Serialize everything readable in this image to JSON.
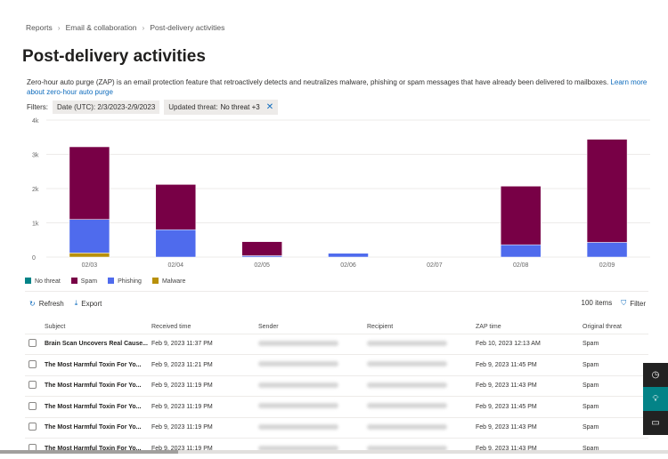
{
  "breadcrumb": [
    "Reports",
    "Email & collaboration",
    "Post-delivery activities"
  ],
  "title": "Post-delivery activities",
  "description": "Zero-hour auto purge (ZAP) is an email protection feature that retroactively detects and neutralizes malware, phishing or spam messages that have already been delivered to mailboxes. ",
  "learn_more": "Learn more about zero-hour auto purge",
  "filters": {
    "label": "Filters:",
    "date": "Date (UTC): 2/3/2023-2/9/2023",
    "threat_label": "Updated threat:",
    "threat_value": "No threat +3"
  },
  "chart_data": {
    "type": "bar",
    "stacked": true,
    "categories": [
      "02/03",
      "02/04",
      "02/05",
      "02/06",
      "02/07",
      "02/08",
      "02/09"
    ],
    "yticks": [
      "0",
      "1k",
      "2k",
      "3k",
      "4k"
    ],
    "ylim": [
      0,
      4000
    ],
    "grid": true,
    "legend": "bottom-left",
    "series": [
      {
        "name": "No threat",
        "color": "#038387",
        "values": [
          0,
          0,
          0,
          0,
          0,
          0,
          0
        ]
      },
      {
        "name": "Spam",
        "color": "#780046",
        "values": [
          2120,
          1320,
          410,
          0,
          0,
          1710,
          3010
        ]
      },
      {
        "name": "Phishing",
        "color": "#4f6bed",
        "values": [
          980,
          800,
          40,
          110,
          0,
          360,
          430
        ]
      },
      {
        "name": "Malware",
        "color": "#b8900a",
        "values": [
          120,
          0,
          0,
          0,
          0,
          0,
          0
        ]
      }
    ]
  },
  "toolbar": {
    "refresh": "Refresh",
    "export": "Export",
    "count": "100 items",
    "filter": "Filter"
  },
  "table": {
    "columns": [
      "Subject",
      "Received time",
      "Sender",
      "Recipient",
      "ZAP time",
      "Original threat"
    ],
    "rows": [
      {
        "subject": "Brain Scan Uncovers Real Cause...",
        "received": "Feb 9, 2023 11:37 PM",
        "zap": "Feb 10, 2023 12:13 AM",
        "threat": "Spam"
      },
      {
        "subject": "The Most Harmful Toxin For Yo...",
        "received": "Feb 9, 2023 11:21 PM",
        "zap": "Feb 9, 2023 11:45 PM",
        "threat": "Spam"
      },
      {
        "subject": "The Most Harmful Toxin For Yo...",
        "received": "Feb 9, 2023 11:19 PM",
        "zap": "Feb 9, 2023 11:43 PM",
        "threat": "Spam"
      },
      {
        "subject": "The Most Harmful Toxin For Yo...",
        "received": "Feb 9, 2023 11:19 PM",
        "zap": "Feb 9, 2023 11:45 PM",
        "threat": "Spam"
      },
      {
        "subject": "The Most Harmful Toxin For Yo...",
        "received": "Feb 9, 2023 11:19 PM",
        "zap": "Feb 9, 2023 11:43 PM",
        "threat": "Spam"
      },
      {
        "subject": "The Most Harmful Toxin For Yo...",
        "received": "Feb 9, 2023 11:19 PM",
        "zap": "Feb 9, 2023 11:43 PM",
        "threat": "Spam"
      }
    ]
  }
}
